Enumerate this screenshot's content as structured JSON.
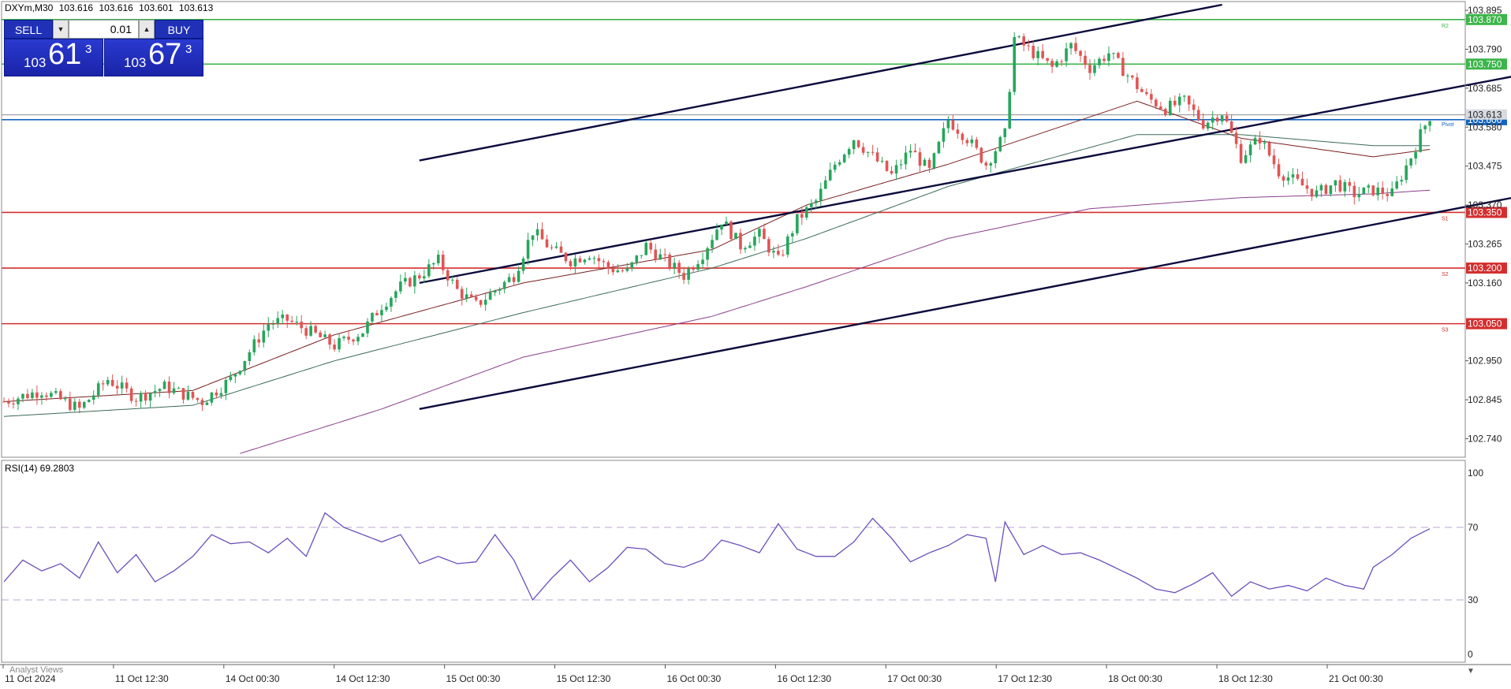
{
  "header": {
    "symbol": "DXYm,M30",
    "open": "103.616",
    "high": "103.616",
    "low": "103.601",
    "close": "103.613"
  },
  "trade_panel": {
    "sell_label": "SELL",
    "buy_label": "BUY",
    "lot_value": "0.01",
    "sell_price_prefix": "103",
    "sell_price_main": "61",
    "sell_price_sup": "3",
    "buy_price_prefix": "103",
    "buy_price_main": "67",
    "buy_price_sup": "3"
  },
  "rsi_label": "RSI(14) 69.2803",
  "analyst_views": "Analyst Views",
  "colors": {
    "bull": "#26a65b",
    "bear": "#e05555",
    "resistance": "#3cb54a",
    "support": "#d32f2f",
    "pivot": "#1565c0",
    "channel": "#0a0a3c",
    "rsi": "#6b4fbb"
  },
  "chart_data": [
    {
      "type": "candlestick",
      "ylim": [
        102.69,
        103.91
      ],
      "y_ticks": [
        "103.895",
        "103.790",
        "103.685",
        "103.580",
        "103.475",
        "103.370",
        "103.265",
        "103.160",
        "102.950",
        "102.845",
        "102.740"
      ],
      "x_ticks": [
        "11 Oct 2024",
        "11 Oct 12:30",
        "14 Oct 00:30",
        "14 Oct 12:30",
        "15 Oct 00:30",
        "15 Oct 12:30",
        "16 Oct 00:30",
        "16 Oct 12:30",
        "17 Oct 00:30",
        "17 Oct 12:30",
        "18 Oct 00:30",
        "18 Oct 12:30",
        "21 Oct 00:30"
      ],
      "close_path": [
        [
          0,
          102.84
        ],
        [
          8,
          102.87
        ],
        [
          16,
          102.82
        ],
        [
          22,
          102.9
        ],
        [
          28,
          102.85
        ],
        [
          34,
          102.88
        ],
        [
          42,
          102.84
        ],
        [
          48,
          102.9
        ],
        [
          56,
          103.05
        ],
        [
          60,
          103.06
        ],
        [
          66,
          103.02
        ],
        [
          70,
          102.99
        ],
        [
          76,
          103.03
        ],
        [
          80,
          103.1
        ],
        [
          84,
          103.15
        ],
        [
          88,
          103.18
        ],
        [
          92,
          103.22
        ],
        [
          96,
          103.14
        ],
        [
          100,
          103.1
        ],
        [
          104,
          103.14
        ],
        [
          108,
          103.18
        ],
        [
          112,
          103.3
        ],
        [
          116,
          103.25
        ],
        [
          120,
          103.22
        ],
        [
          124,
          103.24
        ],
        [
          128,
          103.2
        ],
        [
          132,
          103.19
        ],
        [
          136,
          103.26
        ],
        [
          140,
          103.22
        ],
        [
          144,
          103.18
        ],
        [
          148,
          103.24
        ],
        [
          152,
          103.33
        ],
        [
          156,
          103.26
        ],
        [
          160,
          103.29
        ],
        [
          164,
          103.22
        ],
        [
          168,
          103.33
        ],
        [
          172,
          103.38
        ],
        [
          176,
          103.48
        ],
        [
          180,
          103.55
        ],
        [
          184,
          103.5
        ],
        [
          188,
          103.45
        ],
        [
          192,
          103.52
        ],
        [
          196,
          103.46
        ],
        [
          200,
          103.6
        ],
        [
          204,
          103.55
        ],
        [
          208,
          103.48
        ],
        [
          212,
          103.56
        ],
        [
          214,
          103.82
        ],
        [
          218,
          103.78
        ],
        [
          222,
          103.74
        ],
        [
          226,
          103.8
        ],
        [
          230,
          103.74
        ],
        [
          234,
          103.78
        ],
        [
          238,
          103.72
        ],
        [
          242,
          103.66
        ],
        [
          246,
          103.63
        ],
        [
          250,
          103.65
        ],
        [
          254,
          103.59
        ],
        [
          258,
          103.62
        ],
        [
          262,
          103.5
        ],
        [
          266,
          103.55
        ],
        [
          270,
          103.46
        ],
        [
          274,
          103.43
        ],
        [
          278,
          103.4
        ],
        [
          282,
          103.43
        ],
        [
          286,
          103.4
        ],
        [
          290,
          103.41
        ],
        [
          294,
          103.4
        ],
        [
          298,
          103.5
        ],
        [
          300,
          103.56
        ],
        [
          302,
          103.61
        ]
      ],
      "horizontal_levels": [
        {
          "value": 103.87,
          "label": "103.870",
          "kind": "resistance",
          "tag": "R2"
        },
        {
          "value": 103.75,
          "label": "103.750",
          "kind": "resistance",
          "tag": ""
        },
        {
          "value": 103.6,
          "label": "103.600",
          "kind": "pivot",
          "tag": "Pivot"
        },
        {
          "value": 103.35,
          "label": "103.350",
          "kind": "support",
          "tag": "S1"
        },
        {
          "value": 103.2,
          "label": "103.200",
          "kind": "support",
          "tag": "S2"
        },
        {
          "value": 103.05,
          "label": "103.050",
          "kind": "support",
          "tag": "S3"
        }
      ],
      "current_price_label": "103.613",
      "channel_lines": [
        {
          "from": [
            88,
            103.49
          ],
          "to": [
            258,
            103.91
          ]
        },
        {
          "from": [
            88,
            103.16
          ],
          "to": [
            400,
            103.91
          ]
        },
        {
          "from": [
            88,
            102.82
          ],
          "to": [
            470,
            103.76
          ]
        }
      ],
      "moving_averages": [
        {
          "points": [
            [
              0,
              102.84
            ],
            [
              40,
              102.87
            ],
            [
              70,
              103.02
            ],
            [
              110,
              103.16
            ],
            [
              150,
              103.25
            ],
            [
              170,
              103.37
            ],
            [
              200,
              103.48
            ],
            [
              240,
              103.65
            ],
            [
              262,
              103.55
            ],
            [
              290,
              103.5
            ],
            [
              302,
              103.52
            ]
          ],
          "color": "#7a1f1f"
        },
        {
          "points": [
            [
              0,
              102.8
            ],
            [
              40,
              102.83
            ],
            [
              70,
              102.95
            ],
            [
              110,
              103.08
            ],
            [
              150,
              103.2
            ],
            [
              170,
              103.28
            ],
            [
              200,
              103.42
            ],
            [
              240,
              103.56
            ],
            [
              262,
              103.56
            ],
            [
              290,
              103.53
            ],
            [
              302,
              103.53
            ]
          ],
          "color": "#3b6b5a"
        },
        {
          "points": [
            [
              50,
              102.7
            ],
            [
              80,
              102.82
            ],
            [
              110,
              102.96
            ],
            [
              150,
              103.07
            ],
            [
              170,
              103.15
            ],
            [
              200,
              103.28
            ],
            [
              230,
              103.36
            ],
            [
              262,
              103.39
            ],
            [
              290,
              103.4
            ],
            [
              302,
              103.41
            ]
          ],
          "color": "#8b3f8b"
        }
      ]
    },
    {
      "type": "line",
      "title": "RSI(14) 69.2803",
      "ylim": [
        0,
        100
      ],
      "y_ticks": [
        "100",
        "70",
        "30",
        "0"
      ],
      "levels": [
        70,
        30
      ],
      "values": [
        [
          0,
          40
        ],
        [
          4,
          52
        ],
        [
          8,
          46
        ],
        [
          12,
          50
        ],
        [
          16,
          42
        ],
        [
          20,
          62
        ],
        [
          24,
          45
        ],
        [
          28,
          55
        ],
        [
          32,
          40
        ],
        [
          36,
          46
        ],
        [
          40,
          54
        ],
        [
          44,
          66
        ],
        [
          48,
          61
        ],
        [
          52,
          62
        ],
        [
          56,
          56
        ],
        [
          60,
          64
        ],
        [
          64,
          54
        ],
        [
          68,
          78
        ],
        [
          72,
          70
        ],
        [
          76,
          66
        ],
        [
          80,
          62
        ],
        [
          84,
          66
        ],
        [
          88,
          50
        ],
        [
          92,
          54
        ],
        [
          96,
          50
        ],
        [
          100,
          51
        ],
        [
          104,
          66
        ],
        [
          108,
          52
        ],
        [
          112,
          30
        ],
        [
          116,
          42
        ],
        [
          120,
          52
        ],
        [
          124,
          40
        ],
        [
          128,
          48
        ],
        [
          132,
          59
        ],
        [
          136,
          58
        ],
        [
          140,
          50
        ],
        [
          144,
          48
        ],
        [
          148,
          52
        ],
        [
          152,
          63
        ],
        [
          156,
          60
        ],
        [
          160,
          56
        ],
        [
          164,
          72
        ],
        [
          168,
          58
        ],
        [
          172,
          54
        ],
        [
          176,
          54
        ],
        [
          180,
          62
        ],
        [
          184,
          75
        ],
        [
          188,
          64
        ],
        [
          192,
          51
        ],
        [
          196,
          56
        ],
        [
          200,
          60
        ],
        [
          204,
          66
        ],
        [
          208,
          64
        ],
        [
          210,
          40
        ],
        [
          212,
          73
        ],
        [
          216,
          55
        ],
        [
          220,
          60
        ],
        [
          224,
          55
        ],
        [
          228,
          56
        ],
        [
          232,
          52
        ],
        [
          236,
          47
        ],
        [
          240,
          42
        ],
        [
          244,
          36
        ],
        [
          248,
          34
        ],
        [
          252,
          39
        ],
        [
          256,
          45
        ],
        [
          260,
          32
        ],
        [
          264,
          40
        ],
        [
          268,
          36
        ],
        [
          272,
          38
        ],
        [
          276,
          35
        ],
        [
          280,
          42
        ],
        [
          284,
          38
        ],
        [
          288,
          36
        ],
        [
          290,
          48
        ],
        [
          294,
          55
        ],
        [
          298,
          64
        ],
        [
          302,
          69.28
        ]
      ]
    }
  ]
}
